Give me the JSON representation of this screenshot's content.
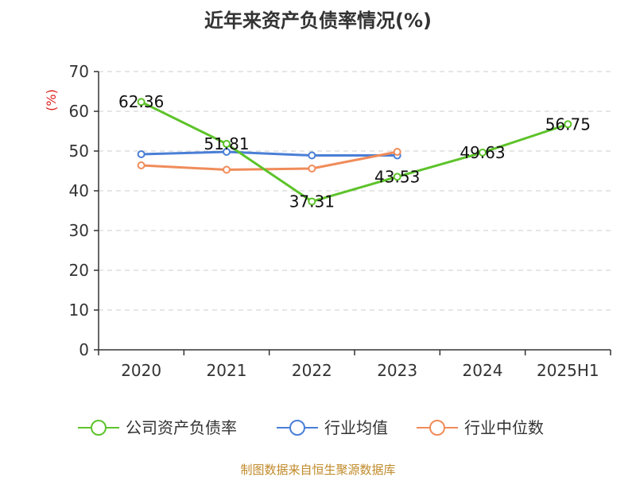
{
  "chart_data": {
    "type": "line",
    "title": "近年来资产负债率情况(%)",
    "y_unit": "(%)",
    "categories": [
      "2020",
      "2021",
      "2022",
      "2023",
      "2024",
      "2025H1"
    ],
    "ylim": [
      0,
      70
    ],
    "yticks": [
      0,
      10,
      20,
      30,
      40,
      50,
      60,
      70
    ],
    "grid": true,
    "legend_position": "bottom",
    "series": [
      {
        "name": "公司资产负债率",
        "color": "#5dc32a",
        "values": [
          62.36,
          51.81,
          37.31,
          43.53,
          49.63,
          56.75
        ],
        "labels": [
          "62.36",
          "51.81",
          "37.31",
          "43.53",
          "49.63",
          "56.75"
        ]
      },
      {
        "name": "行业均值",
        "color": "#4a7fd6",
        "values": [
          49.2,
          49.8,
          48.9,
          48.9,
          null,
          null
        ]
      },
      {
        "name": "行业中位数",
        "color": "#f08c5a",
        "values": [
          46.4,
          45.3,
          45.6,
          49.8,
          null,
          null
        ]
      }
    ],
    "source": "制图数据来自恒生聚源数据库"
  }
}
